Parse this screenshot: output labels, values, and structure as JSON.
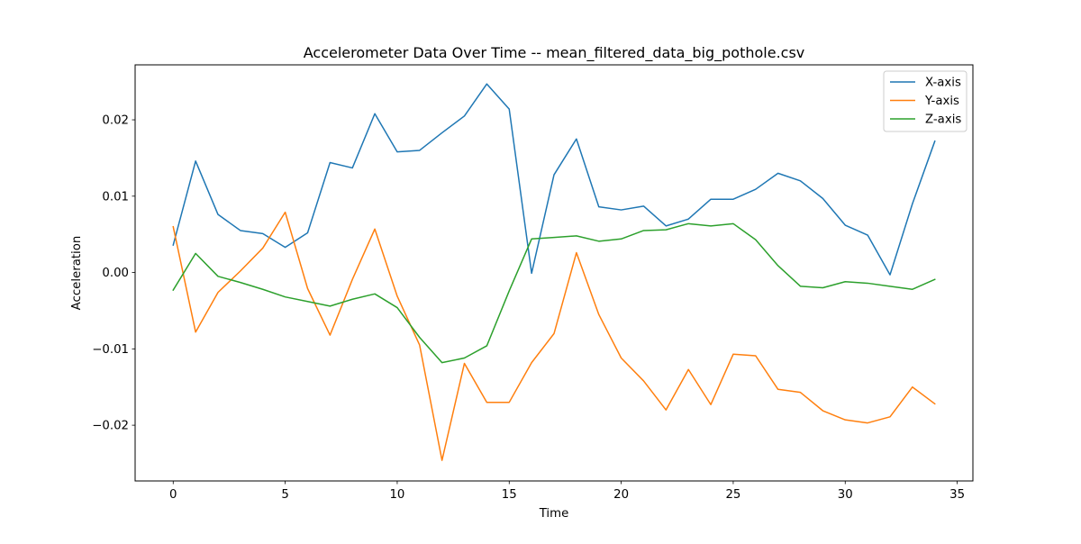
{
  "chart_data": {
    "type": "line",
    "title": "Accelerometer Data Over Time -- mean_filtered_data_big_pothole.csv",
    "xlabel": "Time",
    "ylabel": "Acceleration",
    "xlim": [
      -1.7,
      35.7
    ],
    "ylim": [
      -0.0273,
      0.0272
    ],
    "xticks": [
      0,
      5,
      10,
      15,
      20,
      25,
      30,
      35
    ],
    "xtick_labels": [
      "0",
      "5",
      "10",
      "15",
      "20",
      "25",
      "30",
      "35"
    ],
    "yticks": [
      -0.02,
      -0.01,
      0.0,
      0.01,
      0.02
    ],
    "ytick_labels": [
      "−0.02",
      "−0.01",
      "0.00",
      "0.01",
      "0.02"
    ],
    "grid": false,
    "legend_position": "upper right",
    "x": [
      0,
      1,
      2,
      3,
      4,
      5,
      6,
      7,
      8,
      9,
      10,
      11,
      12,
      13,
      14,
      15,
      16,
      17,
      18,
      19,
      20,
      21,
      22,
      23,
      24,
      25,
      26,
      27,
      28,
      29,
      30,
      31,
      32,
      33,
      34
    ],
    "series": [
      {
        "name": "X-axis",
        "color": "#1f77b4",
        "values": [
          0.0036,
          0.0146,
          0.0076,
          0.0055,
          0.0051,
          0.0033,
          0.0052,
          0.0144,
          0.0137,
          0.0208,
          0.0158,
          0.016,
          0.0183,
          0.0205,
          0.0247,
          0.0214,
          -0.0001,
          0.0128,
          0.0175,
          0.0086,
          0.0082,
          0.0087,
          0.0061,
          0.007,
          0.0096,
          0.0096,
          0.0109,
          0.013,
          0.012,
          0.0097,
          0.0062,
          0.0049,
          -0.0003,
          0.009,
          0.0172
        ]
      },
      {
        "name": "Y-axis",
        "color": "#ff7f0e",
        "values": [
          0.006,
          -0.0078,
          -0.0026,
          0.0002,
          0.0032,
          0.0079,
          -0.0021,
          -0.0082,
          -0.0009,
          0.0057,
          -0.0031,
          -0.0095,
          -0.0246,
          -0.0119,
          -0.017,
          -0.017,
          -0.0118,
          -0.008,
          0.0026,
          -0.0055,
          -0.0112,
          -0.0142,
          -0.018,
          -0.0127,
          -0.0173,
          -0.0107,
          -0.0109,
          -0.0153,
          -0.0157,
          -0.0181,
          -0.0193,
          -0.0197,
          -0.0189,
          -0.015,
          -0.0172
        ]
      },
      {
        "name": "Z-axis",
        "color": "#2ca02c",
        "values": [
          -0.0023,
          0.0025,
          -0.0005,
          -0.0013,
          -0.0022,
          -0.0032,
          -0.0038,
          -0.0044,
          -0.0035,
          -0.0028,
          -0.0046,
          -0.0085,
          -0.0118,
          -0.0112,
          -0.0096,
          -0.0024,
          0.0044,
          0.0046,
          0.0048,
          0.0041,
          0.0044,
          0.0055,
          0.0056,
          0.0064,
          0.0061,
          0.0064,
          0.0043,
          0.0009,
          -0.0018,
          -0.002,
          -0.0012,
          -0.0014,
          -0.0018,
          -0.0022,
          -0.0009
        ]
      }
    ]
  }
}
